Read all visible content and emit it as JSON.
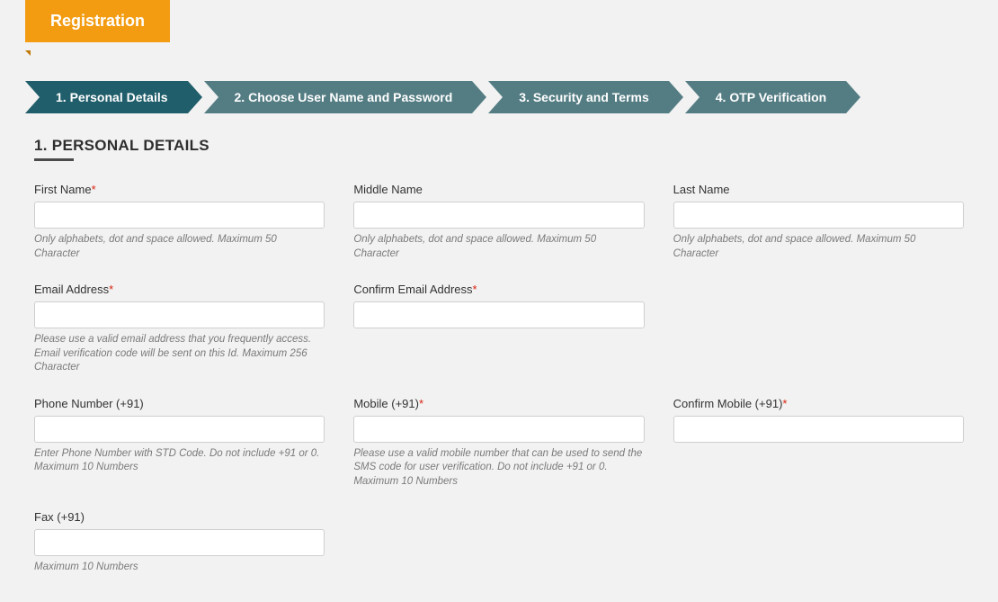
{
  "colors": {
    "page_bg": "#f2f2f2",
    "title_bg": "#f39c12",
    "title_notch": "#c07a0a",
    "step_bg": "#547d83",
    "step_active_bg": "#205e6b",
    "text": "#333333",
    "help_text": "#7a7a7a",
    "required": "#d9230f",
    "input_border": "#cfcfcf",
    "section_rule": "#4b4b4b"
  },
  "title": "Registration",
  "steps": [
    {
      "label": "1. Personal Details",
      "active": true
    },
    {
      "label": "2. Choose User Name and Password",
      "active": false
    },
    {
      "label": "3. Security and Terms",
      "active": false
    },
    {
      "label": "4. OTP Verification",
      "active": false
    }
  ],
  "section_heading": "1. PERSONAL DETAILS",
  "fields": {
    "first_name": {
      "label": "First Name",
      "required": true,
      "help": "Only alphabets, dot and space allowed. Maximum 50 Character",
      "value": ""
    },
    "middle_name": {
      "label": "Middle Name",
      "required": false,
      "help": "Only alphabets, dot and space allowed. Maximum 50 Character",
      "value": ""
    },
    "last_name": {
      "label": "Last Name",
      "required": false,
      "help": "Only alphabets, dot and space allowed. Maximum 50 Character",
      "value": ""
    },
    "email": {
      "label": "Email Address",
      "required": true,
      "help": "Please use a valid email address that you frequently access. Email verification code will be sent on this Id. Maximum 256 Character",
      "value": ""
    },
    "confirm_email": {
      "label": "Confirm Email Address",
      "required": true,
      "help": "",
      "value": ""
    },
    "phone": {
      "label": "Phone Number (+91)",
      "required": false,
      "help": "Enter Phone Number with STD Code. Do not include +91 or 0. Maximum 10 Numbers",
      "value": ""
    },
    "mobile": {
      "label": "Mobile (+91)",
      "required": true,
      "help": "Please use a valid mobile number that can be used to send the SMS code for user verification. Do not include +91 or 0. Maximum 10 Numbers",
      "value": ""
    },
    "confirm_mobile": {
      "label": "Confirm Mobile (+91)",
      "required": true,
      "help": "",
      "value": ""
    },
    "fax": {
      "label": "Fax (+91)",
      "required": false,
      "help": "Maximum 10 Numbers",
      "value": ""
    }
  }
}
